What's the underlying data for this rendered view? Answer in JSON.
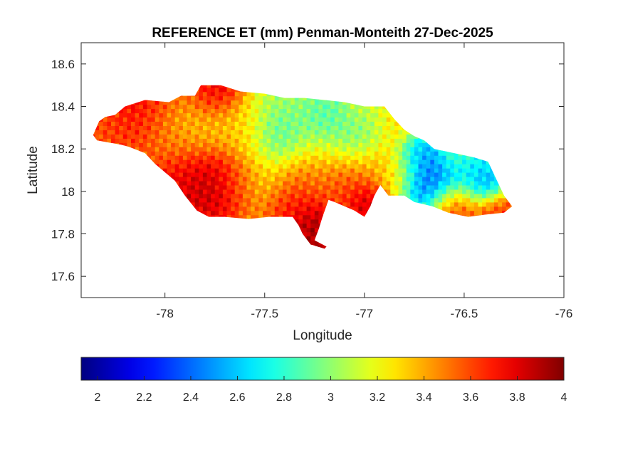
{
  "chart_data": {
    "type": "heatmap",
    "title": "REFERENCE ET (mm) Penman-Monteith 27-Dec-2025",
    "xlabel": "Longitude",
    "ylabel": "Latitude",
    "xlim": [
      -78.42,
      -76
    ],
    "ylim": [
      17.5,
      18.7
    ],
    "x_ticks": [
      -78,
      -77.5,
      -77,
      -76.5,
      -76
    ],
    "x_tick_labels": [
      "-78",
      "-77.5",
      "-77",
      "-76.5",
      "-76"
    ],
    "y_ticks": [
      17.6,
      17.8,
      18,
      18.2,
      18.4,
      18.6
    ],
    "y_tick_labels": [
      "17.6",
      "17.8",
      "18",
      "18.2",
      "18.4",
      "18.6"
    ],
    "colormap": "jet",
    "clim": [
      1.93,
      4.0
    ],
    "colorbar_ticks": [
      2,
      2.2,
      2.4,
      2.6,
      2.8,
      3,
      3.2,
      3.4,
      3.6,
      3.8,
      4
    ],
    "colorbar_tick_labels": [
      "2",
      "2.2",
      "2.4",
      "2.6",
      "2.8",
      "3",
      "3.2",
      "3.4",
      "3.6",
      "3.8",
      "4"
    ],
    "colorbar_location": "southoutside",
    "region_outline": [
      [
        -78.36,
        18.265
      ],
      [
        -78.33,
        18.33
      ],
      [
        -78.3,
        18.35
      ],
      [
        -78.25,
        18.36
      ],
      [
        -78.2,
        18.4
      ],
      [
        -78.1,
        18.43
      ],
      [
        -77.98,
        18.42
      ],
      [
        -77.92,
        18.45
      ],
      [
        -77.85,
        18.45
      ],
      [
        -77.82,
        18.5
      ],
      [
        -77.72,
        18.5
      ],
      [
        -77.62,
        18.47
      ],
      [
        -77.5,
        18.46
      ],
      [
        -77.4,
        18.44
      ],
      [
        -77.3,
        18.44
      ],
      [
        -77.2,
        18.43
      ],
      [
        -77.1,
        18.42
      ],
      [
        -77.0,
        18.4
      ],
      [
        -76.9,
        18.4
      ],
      [
        -76.85,
        18.34
      ],
      [
        -76.8,
        18.29
      ],
      [
        -76.75,
        18.26
      ],
      [
        -76.7,
        18.24
      ],
      [
        -76.65,
        18.2
      ],
      [
        -76.55,
        18.18
      ],
      [
        -76.45,
        18.16
      ],
      [
        -76.38,
        18.14
      ],
      [
        -76.33,
        18.04
      ],
      [
        -76.3,
        17.98
      ],
      [
        -76.26,
        17.93
      ],
      [
        -76.3,
        17.9
      ],
      [
        -76.4,
        17.89
      ],
      [
        -76.48,
        17.88
      ],
      [
        -76.58,
        17.9
      ],
      [
        -76.66,
        17.93
      ],
      [
        -76.75,
        17.95
      ],
      [
        -76.8,
        17.98
      ],
      [
        -76.88,
        17.98
      ],
      [
        -76.92,
        18.03
      ],
      [
        -76.95,
        17.98
      ],
      [
        -76.97,
        17.93
      ],
      [
        -77.0,
        17.88
      ],
      [
        -77.05,
        17.91
      ],
      [
        -77.1,
        17.93
      ],
      [
        -77.15,
        17.95
      ],
      [
        -77.18,
        17.96
      ],
      [
        -77.21,
        17.88
      ],
      [
        -77.23,
        17.82
      ],
      [
        -77.25,
        17.77
      ],
      [
        -77.19,
        17.74
      ],
      [
        -77.2,
        17.73
      ],
      [
        -77.27,
        17.75
      ],
      [
        -77.31,
        17.8
      ],
      [
        -77.33,
        17.84
      ],
      [
        -77.36,
        17.88
      ],
      [
        -77.48,
        17.88
      ],
      [
        -77.58,
        17.87
      ],
      [
        -77.7,
        17.88
      ],
      [
        -77.78,
        17.88
      ],
      [
        -77.84,
        17.91
      ],
      [
        -77.9,
        17.98
      ],
      [
        -77.95,
        18.05
      ],
      [
        -78.0,
        18.09
      ],
      [
        -78.05,
        18.13
      ],
      [
        -78.1,
        18.18
      ],
      [
        -78.18,
        18.21
      ],
      [
        -78.22,
        18.22
      ],
      [
        -78.28,
        18.23
      ],
      [
        -78.34,
        18.24
      ]
    ],
    "value_fields": [
      {
        "lon": -78.1,
        "lat": 18.38,
        "value": 3.85,
        "radius": 0.12
      },
      {
        "lon": -78.28,
        "lat": 18.28,
        "value": 3.6,
        "radius": 0.09
      },
      {
        "lon": -77.95,
        "lat": 18.3,
        "value": 3.3,
        "radius": 0.12
      },
      {
        "lon": -77.9,
        "lat": 18.05,
        "value": 3.85,
        "radius": 0.12
      },
      {
        "lon": -77.75,
        "lat": 18.05,
        "value": 3.95,
        "radius": 0.1
      },
      {
        "lon": -77.62,
        "lat": 18.05,
        "value": 3.55,
        "radius": 0.08
      },
      {
        "lon": -77.75,
        "lat": 18.46,
        "value": 3.9,
        "radius": 0.08
      },
      {
        "lon": -77.75,
        "lat": 18.3,
        "value": 3.3,
        "radius": 0.1
      },
      {
        "lon": -77.6,
        "lat": 18.3,
        "value": 3.35,
        "radius": 0.08
      },
      {
        "lon": -77.45,
        "lat": 18.32,
        "value": 2.95,
        "radius": 0.1
      },
      {
        "lon": -77.42,
        "lat": 18.25,
        "value": 2.75,
        "radius": 0.07
      },
      {
        "lon": -77.25,
        "lat": 18.3,
        "value": 2.95,
        "radius": 0.1
      },
      {
        "lon": -77.2,
        "lat": 18.36,
        "value": 2.8,
        "radius": 0.07
      },
      {
        "lon": -77.05,
        "lat": 18.25,
        "value": 2.75,
        "radius": 0.08
      },
      {
        "lon": -77.0,
        "lat": 18.35,
        "value": 3.1,
        "radius": 0.07
      },
      {
        "lon": -77.5,
        "lat": 18.1,
        "value": 3.2,
        "radius": 0.1
      },
      {
        "lon": -77.3,
        "lat": 18.1,
        "value": 3.45,
        "radius": 0.1
      },
      {
        "lon": -77.05,
        "lat": 18.12,
        "value": 3.5,
        "radius": 0.1
      },
      {
        "lon": -77.35,
        "lat": 17.96,
        "value": 3.8,
        "radius": 0.09
      },
      {
        "lon": -77.25,
        "lat": 17.83,
        "value": 4.0,
        "radius": 0.07
      },
      {
        "lon": -77.2,
        "lat": 17.76,
        "value": 3.9,
        "radius": 0.04
      },
      {
        "lon": -77.0,
        "lat": 17.95,
        "value": 3.95,
        "radius": 0.06
      },
      {
        "lon": -77.1,
        "lat": 18.0,
        "value": 3.65,
        "radius": 0.07
      },
      {
        "lon": -76.85,
        "lat": 18.1,
        "value": 3.3,
        "radius": 0.07
      },
      {
        "lon": -76.85,
        "lat": 18.32,
        "value": 3.25,
        "radius": 0.06
      },
      {
        "lon": -76.65,
        "lat": 18.05,
        "value": 2.25,
        "radius": 0.09
      },
      {
        "lon": -76.72,
        "lat": 18.15,
        "value": 2.5,
        "radius": 0.07
      },
      {
        "lon": -76.45,
        "lat": 18.08,
        "value": 2.6,
        "radius": 0.08
      },
      {
        "lon": -76.38,
        "lat": 18.03,
        "value": 2.35,
        "radius": 0.05
      },
      {
        "lon": -76.55,
        "lat": 17.93,
        "value": 3.75,
        "radius": 0.07
      },
      {
        "lon": -76.35,
        "lat": 17.93,
        "value": 3.7,
        "radius": 0.06
      },
      {
        "lon": -76.55,
        "lat": 18.16,
        "value": 2.9,
        "radius": 0.05
      }
    ],
    "base_value": 3.35
  }
}
